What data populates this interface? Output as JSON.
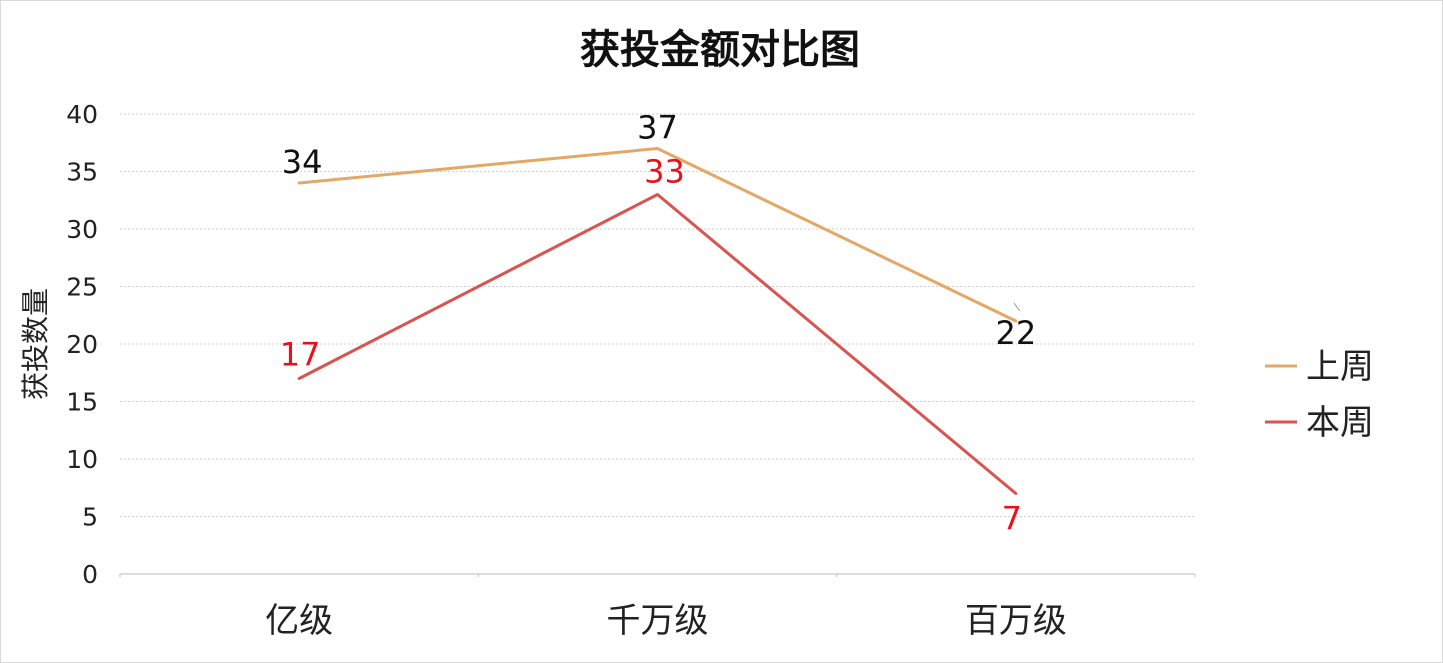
{
  "chart_data": {
    "type": "line",
    "title": "获投金额对比图",
    "xlabel": "",
    "ylabel": "获投数量",
    "categories": [
      "亿级",
      "千万级",
      "百万级"
    ],
    "ylim": [
      0,
      40
    ],
    "yticks": [
      0,
      5,
      10,
      15,
      20,
      25,
      30,
      35,
      40
    ],
    "grid": true,
    "legend": "right",
    "series": [
      {
        "name": "上周",
        "values": [
          34,
          37,
          22
        ],
        "color": "#E3A865",
        "label_color": "#111111"
      },
      {
        "name": "本周",
        "values": [
          17,
          33,
          7
        ],
        "color": "#D9534F",
        "label_color": "#E8111A"
      }
    ]
  }
}
